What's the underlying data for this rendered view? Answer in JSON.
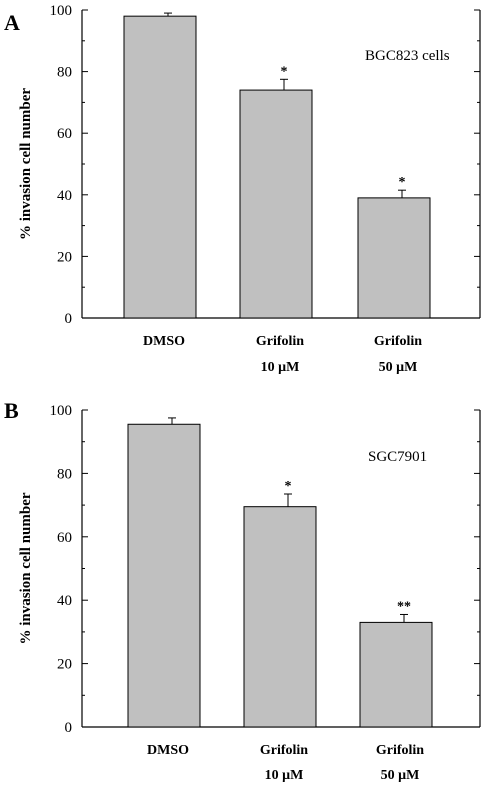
{
  "chart_data": [
    {
      "type": "bar",
      "panel": "A",
      "annotation": "BGC823 cells",
      "ylabel": "% invasion cell number",
      "ylim": [
        0,
        100
      ],
      "yticks": [
        "0",
        "20",
        "40",
        "60",
        "80",
        "100"
      ],
      "categories": [
        [
          "DMSO"
        ],
        [
          "Grifolin",
          "10 μM"
        ],
        [
          "Grifolin",
          "50 μM"
        ]
      ],
      "values": [
        98,
        74,
        39
      ],
      "errors": [
        1,
        3.5,
        2.5
      ],
      "significance": [
        "",
        "*",
        "*"
      ],
      "bar_color": "#c0c0c0"
    },
    {
      "type": "bar",
      "panel": "B",
      "annotation": "SGC7901",
      "ylabel": "% invasion cell number",
      "ylim": [
        0,
        100
      ],
      "yticks": [
        "0",
        "20",
        "40",
        "60",
        "80",
        "100"
      ],
      "categories": [
        [
          "DMSO"
        ],
        [
          "Grifolin",
          "10 μM"
        ],
        [
          "Grifolin",
          "50 μM"
        ]
      ],
      "values": [
        95.5,
        69.5,
        33
      ],
      "errors": [
        2,
        4,
        2.5
      ],
      "significance": [
        "",
        "*",
        "**"
      ],
      "bar_color": "#c0c0c0"
    }
  ]
}
